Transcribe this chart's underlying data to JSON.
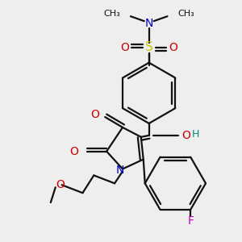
{
  "bg_color": "#eeeeee",
  "colors": {
    "N": "#0000cc",
    "O": "#cc0000",
    "S": "#cccc00",
    "F": "#bb00bb",
    "H": "#008888",
    "C": "#111111"
  },
  "lw": 1.6
}
